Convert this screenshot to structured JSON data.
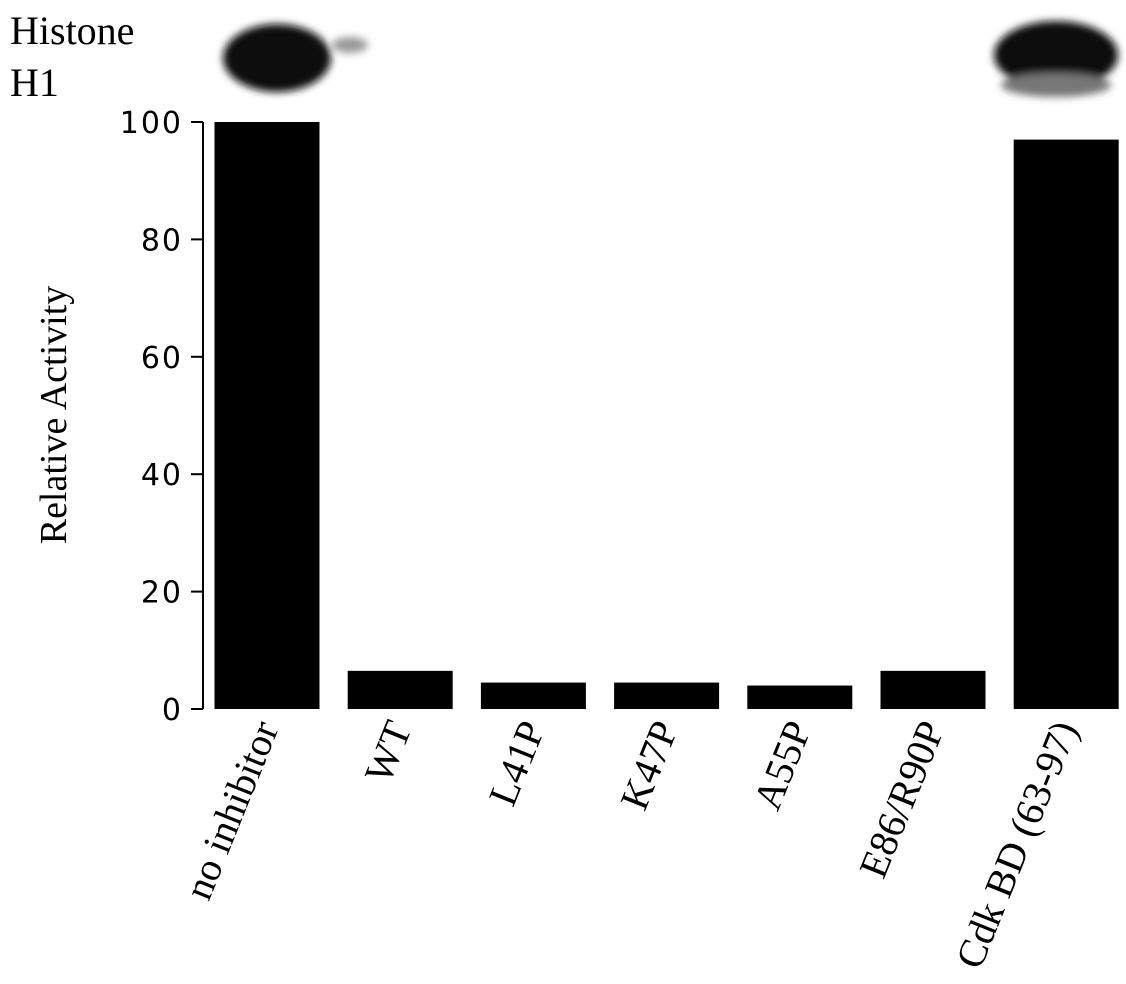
{
  "chart_data": {
    "type": "bar",
    "gel_label": [
      "Histone",
      "H1"
    ],
    "ylabel": "Relative Activity",
    "categories": [
      "no inhibitor",
      "WT",
      "L41P",
      "K47P",
      "A55P",
      "E86/R90P",
      "Cdk BD (63-97)"
    ],
    "values": [
      100,
      6.5,
      4.5,
      4.5,
      4,
      6.5,
      97
    ],
    "color": "#000000",
    "ylim": [
      0,
      100
    ],
    "yticks": [
      0,
      20,
      40,
      60,
      80,
      100
    ],
    "grid": false
  }
}
